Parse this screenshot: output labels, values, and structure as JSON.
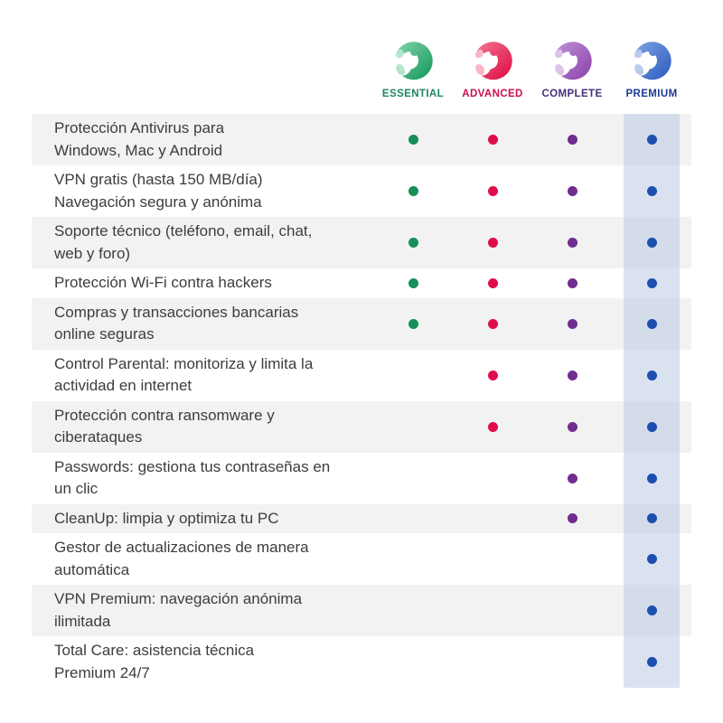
{
  "plans": [
    {
      "id": "essential",
      "label": "ESSENTIAL",
      "label_color": "#1f8565",
      "dot_color": "#178f56",
      "icon_light": "#7ed1a6",
      "icon_dark": "#169a5e",
      "icon_tint": "#b5e6cc"
    },
    {
      "id": "advanced",
      "label": "ADVANCED",
      "label_color": "#c90f4e",
      "dot_color": "#df0d4c",
      "icon_light": "#f2738f",
      "icon_dark": "#e00d47",
      "icon_tint": "#f8b8c6"
    },
    {
      "id": "complete",
      "label": "COMPLETE",
      "label_color": "#43307a",
      "dot_color": "#702c8e",
      "icon_light": "#bd8ed4",
      "icon_dark": "#8e44ad",
      "icon_tint": "#ddc2ea"
    },
    {
      "id": "premium",
      "label": "PREMIUM",
      "label_color": "#1c3a94",
      "dot_color": "#1c4fb0",
      "icon_light": "#7b9fe0",
      "icon_dark": "#2f5ec0",
      "icon_tint": "#b9cbec"
    }
  ],
  "features": [
    {
      "label": "Protección Antivirus para\nWindows, Mac y Android",
      "included": [
        true,
        true,
        true,
        true
      ]
    },
    {
      "label": "VPN gratis (hasta 150 MB/día)\nNavegación segura y anónima",
      "included": [
        true,
        true,
        true,
        true
      ]
    },
    {
      "label": "Soporte técnico (teléfono, email, chat,\nweb y foro)",
      "included": [
        true,
        true,
        true,
        true
      ]
    },
    {
      "label": "Protección Wi-Fi contra hackers",
      "included": [
        true,
        true,
        true,
        true
      ]
    },
    {
      "label": "Compras y transacciones bancarias\nonline seguras",
      "included": [
        true,
        true,
        true,
        true
      ]
    },
    {
      "label": "Control Parental: monitoriza y limita la\nactividad en internet",
      "included": [
        false,
        true,
        true,
        true
      ]
    },
    {
      "label": "Protección contra ransomware y\nciberataques",
      "included": [
        false,
        true,
        true,
        true
      ]
    },
    {
      "label": "Passwords: gestiona tus contraseñas en\nun clic",
      "included": [
        false,
        false,
        true,
        true
      ]
    },
    {
      "label": "CleanUp: limpia y optimiza tu PC",
      "included": [
        false,
        false,
        true,
        true
      ]
    },
    {
      "label": "Gestor de actualizaciones de manera\nautomática",
      "included": [
        false,
        false,
        false,
        true
      ]
    },
    {
      "label": "VPN Premium: navegación anónima\nilimitada",
      "included": [
        false,
        false,
        false,
        true
      ]
    },
    {
      "label": "Total Care: asistencia técnica\nPremium 24/7",
      "included": [
        false,
        false,
        false,
        true
      ]
    }
  ],
  "theme": {
    "background": "#ffffff",
    "row_alt_color": "#f2f2f2",
    "row_text_color": "#3d3d3d",
    "premium_stripe_color": "rgba(187,203,228,0.55)"
  }
}
